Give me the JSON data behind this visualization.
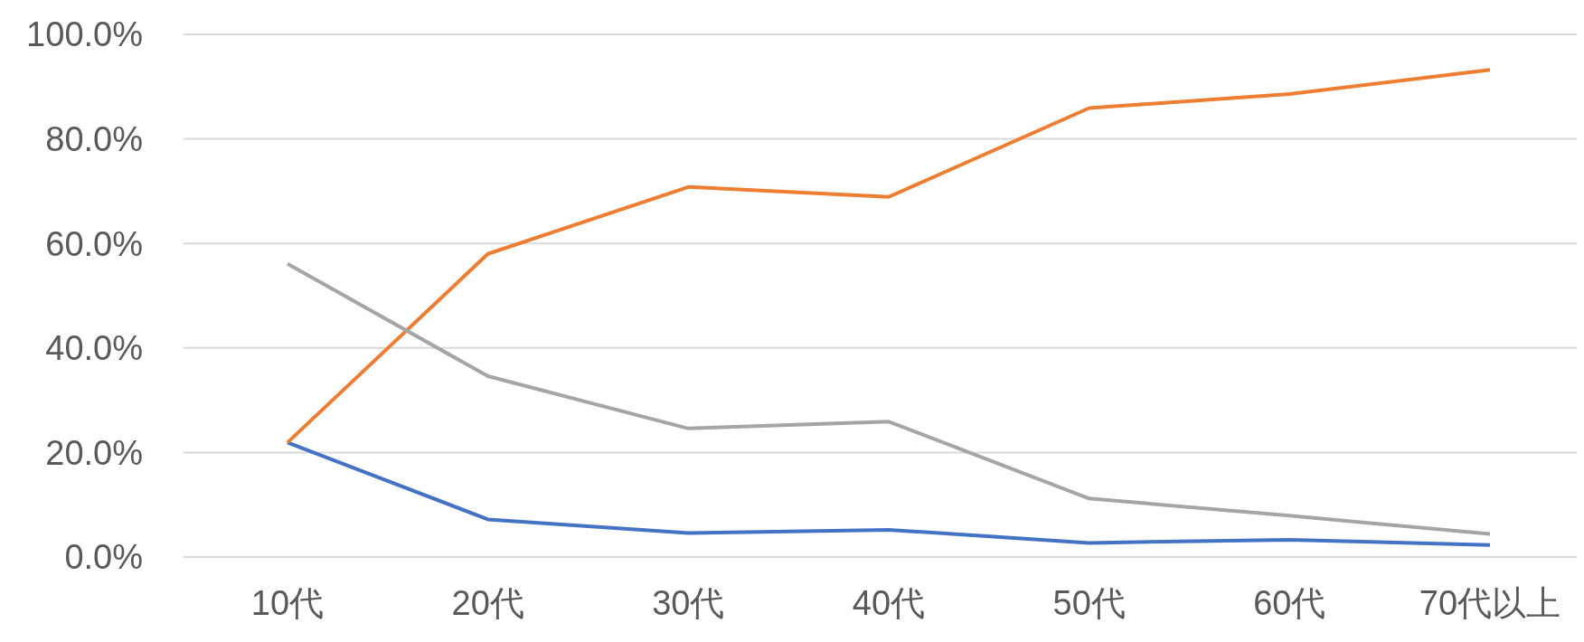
{
  "chart_data": {
    "type": "line",
    "categories": [
      "10代",
      "20代",
      "30代",
      "40代",
      "50代",
      "60代",
      "70代以上"
    ],
    "series": [
      {
        "color": "#4472c4",
        "values": [
          21.9,
          7.2,
          4.6,
          5.2,
          2.7,
          3.3,
          2.3
        ]
      },
      {
        "color": "#ed7d31",
        "values": [
          21.9,
          58.0,
          70.8,
          68.9,
          85.9,
          88.6,
          93.2
        ]
      },
      {
        "color": "#a5a5a5",
        "values": [
          56.1,
          34.6,
          24.6,
          25.9,
          11.2,
          7.9,
          4.4
        ]
      }
    ],
    "ylim": [
      0,
      100
    ],
    "yticks": [
      {
        "value": 0,
        "label": "0.0%"
      },
      {
        "value": 20,
        "label": "20.0%"
      },
      {
        "value": 40,
        "label": "40.0%"
      },
      {
        "value": 60,
        "label": "60.0%"
      },
      {
        "value": 80,
        "label": "80.0%"
      },
      {
        "value": 100,
        "label": "100.0%"
      }
    ],
    "grid": "y",
    "marker": "none",
    "line_style": "solid"
  }
}
